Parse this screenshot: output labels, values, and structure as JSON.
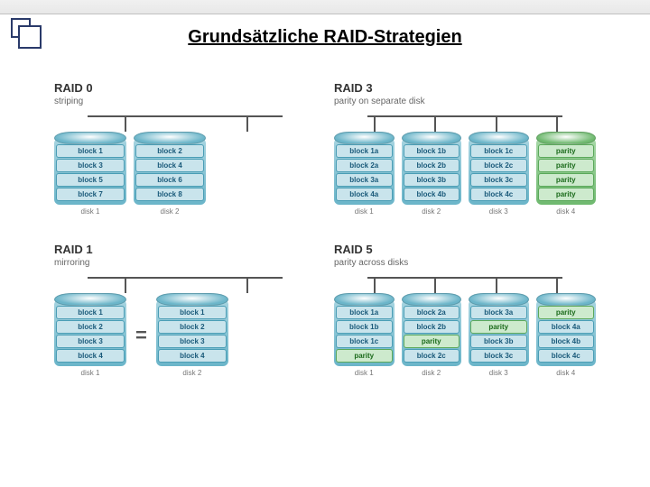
{
  "page_title": "Grundsätzliche RAID-Strategien",
  "colors": {
    "disk_blue_cap": "#6bb5c9",
    "disk_blue_body": "#a7d4e0",
    "disk_green_cap": "#6fb96f",
    "disk_green_body": "#a8d8a8",
    "block_blue_bg": "#c9e4ec",
    "block_blue_border": "#4a9db5",
    "block_blue_text": "#1a5a7a",
    "block_green_bg": "#cdeacd",
    "block_green_border": "#5aa85a",
    "block_green_text": "#1a6a1a",
    "connector": "#555555"
  },
  "raid0": {
    "title": "RAID 0",
    "subtitle": "striping",
    "disks": [
      {
        "label": "disk 1",
        "color": "blue",
        "blocks": [
          {
            "text": "block 1",
            "c": "blue"
          },
          {
            "text": "block 3",
            "c": "blue"
          },
          {
            "text": "block 5",
            "c": "blue"
          },
          {
            "text": "block 7",
            "c": "blue"
          }
        ]
      },
      {
        "label": "disk 2",
        "color": "blue",
        "blocks": [
          {
            "text": "block 2",
            "c": "blue"
          },
          {
            "text": "block 4",
            "c": "blue"
          },
          {
            "text": "block 6",
            "c": "blue"
          },
          {
            "text": "block 8",
            "c": "blue"
          }
        ]
      }
    ]
  },
  "raid3": {
    "title": "RAID 3",
    "subtitle": "parity on separate disk",
    "disks": [
      {
        "label": "disk 1",
        "color": "blue",
        "blocks": [
          {
            "text": "block 1a",
            "c": "blue"
          },
          {
            "text": "block 2a",
            "c": "blue"
          },
          {
            "text": "block 3a",
            "c": "blue"
          },
          {
            "text": "block 4a",
            "c": "blue"
          }
        ]
      },
      {
        "label": "disk 2",
        "color": "blue",
        "blocks": [
          {
            "text": "block 1b",
            "c": "blue"
          },
          {
            "text": "block 2b",
            "c": "blue"
          },
          {
            "text": "block 3b",
            "c": "blue"
          },
          {
            "text": "block 4b",
            "c": "blue"
          }
        ]
      },
      {
        "label": "disk 3",
        "color": "blue",
        "blocks": [
          {
            "text": "block 1c",
            "c": "blue"
          },
          {
            "text": "block 2c",
            "c": "blue"
          },
          {
            "text": "block 3c",
            "c": "blue"
          },
          {
            "text": "block 4c",
            "c": "blue"
          }
        ]
      },
      {
        "label": "disk 4",
        "color": "green",
        "blocks": [
          {
            "text": "parity",
            "c": "green"
          },
          {
            "text": "parity",
            "c": "green"
          },
          {
            "text": "parity",
            "c": "green"
          },
          {
            "text": "parity",
            "c": "green"
          }
        ]
      }
    ]
  },
  "raid1": {
    "title": "RAID 1",
    "subtitle": "mirroring",
    "equals": "=",
    "disks": [
      {
        "label": "disk 1",
        "color": "blue",
        "blocks": [
          {
            "text": "block 1",
            "c": "blue"
          },
          {
            "text": "block 2",
            "c": "blue"
          },
          {
            "text": "block 3",
            "c": "blue"
          },
          {
            "text": "block 4",
            "c": "blue"
          }
        ]
      },
      {
        "label": "disk 2",
        "color": "blue",
        "blocks": [
          {
            "text": "block 1",
            "c": "blue"
          },
          {
            "text": "block 2",
            "c": "blue"
          },
          {
            "text": "block 3",
            "c": "blue"
          },
          {
            "text": "block 4",
            "c": "blue"
          }
        ]
      }
    ]
  },
  "raid5": {
    "title": "RAID 5",
    "subtitle": "parity across disks",
    "disks": [
      {
        "label": "disk 1",
        "color": "blue",
        "blocks": [
          {
            "text": "block 1a",
            "c": "blue"
          },
          {
            "text": "block 1b",
            "c": "blue"
          },
          {
            "text": "block 1c",
            "c": "blue"
          },
          {
            "text": "parity",
            "c": "green"
          }
        ]
      },
      {
        "label": "disk 2",
        "color": "blue",
        "blocks": [
          {
            "text": "block 2a",
            "c": "blue"
          },
          {
            "text": "block 2b",
            "c": "blue"
          },
          {
            "text": "parity",
            "c": "green"
          },
          {
            "text": "block 2c",
            "c": "blue"
          }
        ]
      },
      {
        "label": "disk 3",
        "color": "blue",
        "blocks": [
          {
            "text": "block 3a",
            "c": "blue"
          },
          {
            "text": "parity",
            "c": "green"
          },
          {
            "text": "block 3b",
            "c": "blue"
          },
          {
            "text": "block 3c",
            "c": "blue"
          }
        ]
      },
      {
        "label": "disk 4",
        "color": "blue",
        "blocks": [
          {
            "text": "parity",
            "c": "green"
          },
          {
            "text": "block 4a",
            "c": "blue"
          },
          {
            "text": "block 4b",
            "c": "blue"
          },
          {
            "text": "block 4c",
            "c": "blue"
          }
        ]
      }
    ]
  }
}
